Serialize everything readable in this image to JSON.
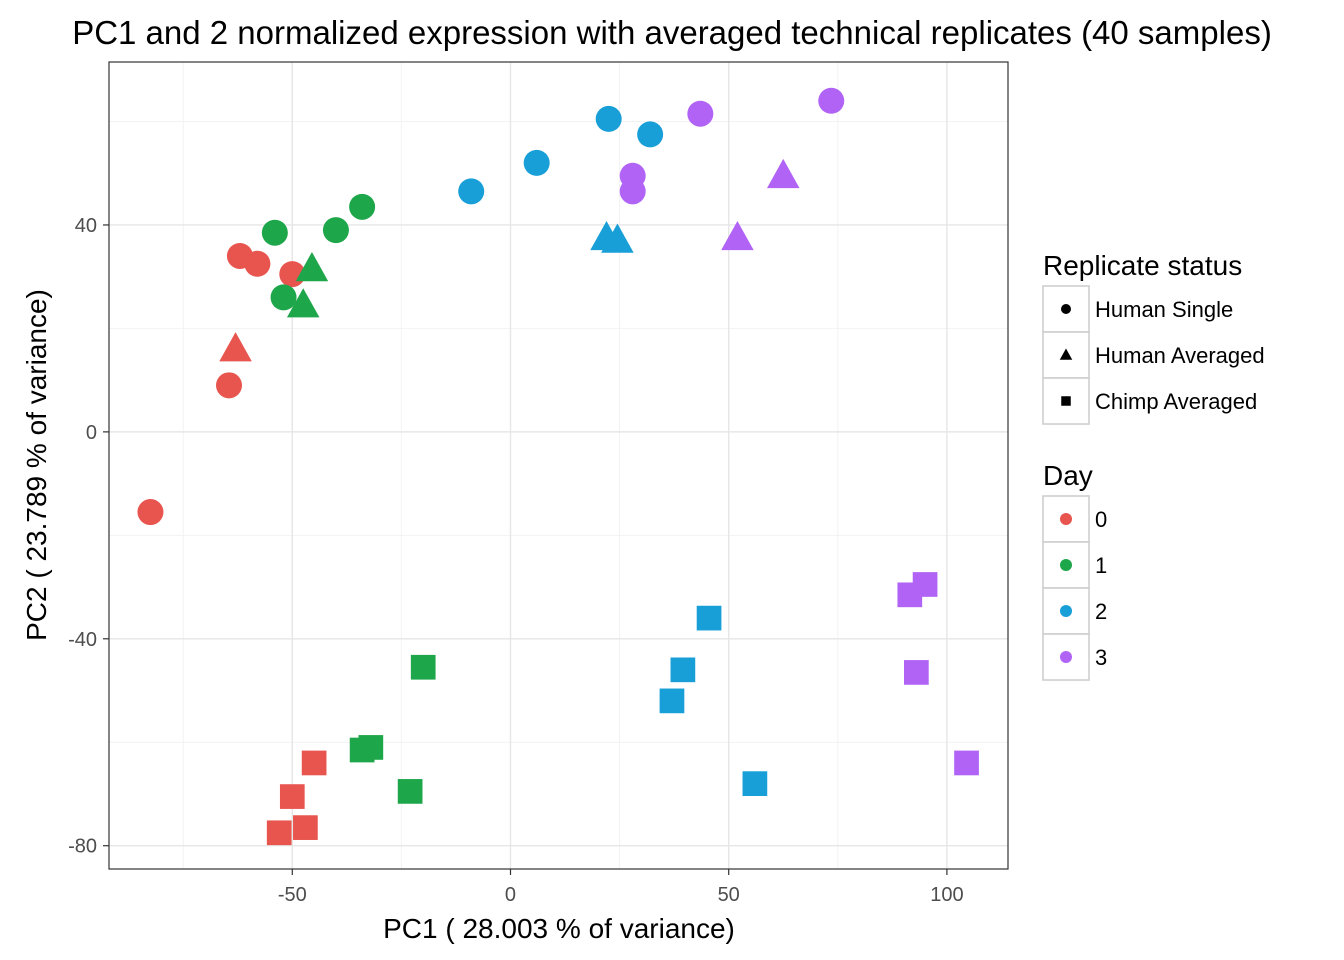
{
  "chart_data": {
    "type": "scatter",
    "title": "PC1 and 2 normalized expression with averaged technical replicates (40 samples)",
    "xlabel": "PC1 ( 28.003 % of variance)",
    "ylabel": "PC2 ( 23.789 % of variance)",
    "xlim": [
      -92,
      114
    ],
    "ylim": [
      -84.5,
      71.5
    ],
    "xticks": [
      -50,
      0,
      50,
      100
    ],
    "yticks": [
      -80,
      -40,
      0,
      40
    ],
    "grid": true,
    "day_colors": {
      "0": "#e8544e",
      "1": "#1ea64a",
      "2": "#189fd8",
      "3": "#b063f5"
    },
    "legend_shape": {
      "title": "Replicate status",
      "items": [
        {
          "label": "Human Single",
          "shape": "circle"
        },
        {
          "label": "Human Averaged",
          "shape": "triangle"
        },
        {
          "label": "Chimp Averaged",
          "shape": "square"
        }
      ]
    },
    "legend_color": {
      "title": "Day",
      "items": [
        {
          "label": "0",
          "color": "#e8544e"
        },
        {
          "label": "1",
          "color": "#1ea64a"
        },
        {
          "label": "2",
          "color": "#189fd8"
        },
        {
          "label": "3",
          "color": "#b063f5"
        }
      ]
    },
    "points": [
      {
        "x": -82.5,
        "y": -15.5,
        "shape": "circle",
        "day": "0"
      },
      {
        "x": -64.5,
        "y": 9,
        "shape": "circle",
        "day": "0"
      },
      {
        "x": -62,
        "y": 34,
        "shape": "circle",
        "day": "0"
      },
      {
        "x": -58,
        "y": 32.5,
        "shape": "circle",
        "day": "0"
      },
      {
        "x": -50,
        "y": 30.5,
        "shape": "circle",
        "day": "0"
      },
      {
        "x": -63,
        "y": 16,
        "shape": "triangle",
        "day": "0"
      },
      {
        "x": -54,
        "y": 38.5,
        "shape": "circle",
        "day": "1"
      },
      {
        "x": -52,
        "y": 26,
        "shape": "circle",
        "day": "1"
      },
      {
        "x": -40,
        "y": 39,
        "shape": "circle",
        "day": "1"
      },
      {
        "x": -34,
        "y": 43.5,
        "shape": "circle",
        "day": "1"
      },
      {
        "x": -45.5,
        "y": 31.5,
        "shape": "triangle",
        "day": "1"
      },
      {
        "x": -47.5,
        "y": 24.5,
        "shape": "triangle",
        "day": "1"
      },
      {
        "x": -9,
        "y": 46.5,
        "shape": "circle",
        "day": "2"
      },
      {
        "x": 6,
        "y": 52,
        "shape": "circle",
        "day": "2"
      },
      {
        "x": 22.5,
        "y": 60.5,
        "shape": "circle",
        "day": "2"
      },
      {
        "x": 32,
        "y": 57.5,
        "shape": "circle",
        "day": "2"
      },
      {
        "x": 22,
        "y": 37.5,
        "shape": "triangle",
        "day": "2"
      },
      {
        "x": 24.5,
        "y": 37,
        "shape": "triangle",
        "day": "2"
      },
      {
        "x": 28,
        "y": 49.5,
        "shape": "circle",
        "day": "3"
      },
      {
        "x": 28,
        "y": 46.5,
        "shape": "circle",
        "day": "3"
      },
      {
        "x": 43.5,
        "y": 61.5,
        "shape": "circle",
        "day": "3"
      },
      {
        "x": 73.5,
        "y": 64,
        "shape": "circle",
        "day": "3"
      },
      {
        "x": 52,
        "y": 37.5,
        "shape": "triangle",
        "day": "3"
      },
      {
        "x": 62.5,
        "y": 49.5,
        "shape": "triangle",
        "day": "3"
      },
      {
        "x": -53,
        "y": -77.5,
        "shape": "square",
        "day": "0"
      },
      {
        "x": -47,
        "y": -76.5,
        "shape": "square",
        "day": "0"
      },
      {
        "x": -50,
        "y": -70.5,
        "shape": "square",
        "day": "0"
      },
      {
        "x": -45,
        "y": -64,
        "shape": "square",
        "day": "0"
      },
      {
        "x": -34,
        "y": -61.5,
        "shape": "square",
        "day": "1"
      },
      {
        "x": -32,
        "y": -61,
        "shape": "square",
        "day": "1"
      },
      {
        "x": -23,
        "y": -69.5,
        "shape": "square",
        "day": "1"
      },
      {
        "x": -20,
        "y": -45.5,
        "shape": "square",
        "day": "1"
      },
      {
        "x": 37,
        "y": -52,
        "shape": "square",
        "day": "2"
      },
      {
        "x": 39.5,
        "y": -46,
        "shape": "square",
        "day": "2"
      },
      {
        "x": 45.5,
        "y": -36,
        "shape": "square",
        "day": "2"
      },
      {
        "x": 56,
        "y": -68,
        "shape": "square",
        "day": "2"
      },
      {
        "x": 91.5,
        "y": -31.5,
        "shape": "square",
        "day": "3"
      },
      {
        "x": 95,
        "y": -29.5,
        "shape": "square",
        "day": "3"
      },
      {
        "x": 93,
        "y": -46.5,
        "shape": "square",
        "day": "3"
      },
      {
        "x": 104.5,
        "y": -64,
        "shape": "square",
        "day": "3"
      }
    ]
  }
}
